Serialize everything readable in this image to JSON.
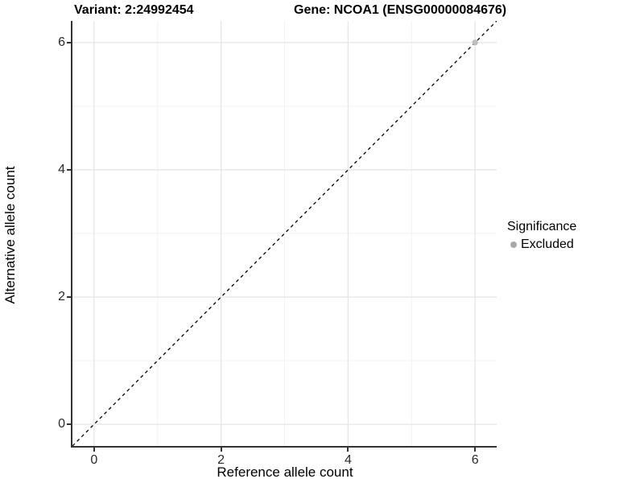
{
  "titles": {
    "left": "Variant: 2:24992454",
    "right": "Gene: NCOA1 (ENSG00000084676)"
  },
  "chart_data": {
    "type": "scatter",
    "xlabel": "Reference allele count",
    "ylabel": "Alternative allele count",
    "xlim": [
      -0.34,
      6.34
    ],
    "ylim": [
      -0.34,
      6.34
    ],
    "x_ticks": [
      0,
      2,
      4,
      6
    ],
    "y_ticks": [
      0,
      2,
      4,
      6
    ],
    "x_minor_ticks": [
      1,
      3,
      5
    ],
    "y_minor_ticks": [
      1,
      3,
      5
    ],
    "grid": true,
    "identity_line": {
      "style": "dashed",
      "color": "#000000",
      "from": [
        -0.34,
        -0.34
      ],
      "to": [
        6.34,
        6.34
      ]
    },
    "series": [
      {
        "name": "Excluded",
        "color": "#bdbdbd",
        "points": [
          [
            6,
            6
          ]
        ]
      }
    ],
    "legend": {
      "title": "Significance",
      "position": "right",
      "items": [
        {
          "label": "Excluded",
          "color": "#a9a9a9"
        }
      ]
    },
    "colors": {
      "grid_major": "#e6e6e6",
      "grid_minor": "#f2f2f2",
      "axis_line": "#333333",
      "tick_text": "#2b2b2b",
      "title_text": "#000000"
    }
  }
}
